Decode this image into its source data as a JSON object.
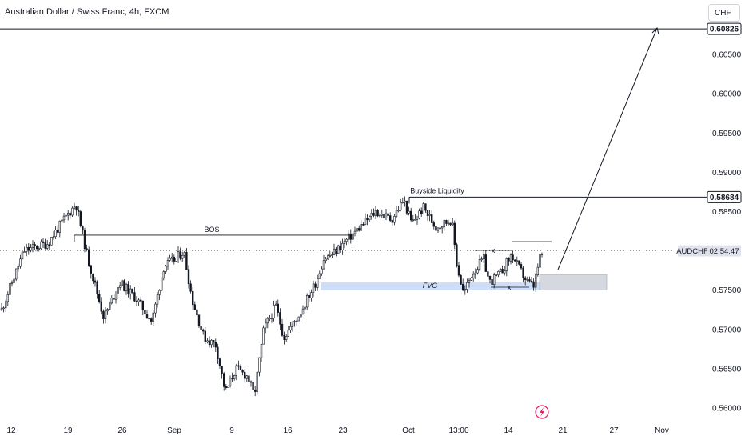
{
  "header": {
    "title": "Australian Dollar / Swiss Franc, 4h, FXCM",
    "currency_button": "CHF"
  },
  "chart_data": {
    "type": "candlestick",
    "title": "Australian Dollar / Swiss Franc, 4h, FXCM",
    "symbol": "AUDCHF",
    "countdown": "02:54:47",
    "ylim": [
      0.56,
      0.61
    ],
    "y_ticks": [
      "0.60500",
      "0.60000",
      "0.59500",
      "0.59000",
      "0.58500",
      "0.58000",
      "0.57500",
      "0.57000",
      "0.56500",
      "0.56000"
    ],
    "x_ticks": [
      "12",
      "19",
      "26",
      "Sep",
      "9",
      "16",
      "23",
      "Oct",
      "13:00",
      "14",
      "21",
      "27",
      "Nov"
    ],
    "price_path": [
      [
        0,
        0.572
      ],
      [
        30,
        0.58
      ],
      [
        60,
        0.581
      ],
      [
        80,
        0.584
      ],
      [
        95,
        0.586
      ],
      [
        110,
        0.579
      ],
      [
        130,
        0.5715
      ],
      [
        150,
        0.576
      ],
      [
        170,
        0.574
      ],
      [
        190,
        0.571
      ],
      [
        205,
        0.578
      ],
      [
        220,
        0.579
      ],
      [
        230,
        0.58
      ],
      [
        240,
        0.574
      ],
      [
        255,
        0.569
      ],
      [
        270,
        0.568
      ],
      [
        282,
        0.562
      ],
      [
        295,
        0.565
      ],
      [
        310,
        0.564
      ],
      [
        318,
        0.5615
      ],
      [
        330,
        0.57
      ],
      [
        345,
        0.573
      ],
      [
        355,
        0.569
      ],
      [
        375,
        0.572
      ],
      [
        395,
        0.576
      ],
      [
        405,
        0.579
      ],
      [
        415,
        0.5795
      ],
      [
        430,
        0.581
      ],
      [
        450,
        0.583
      ],
      [
        470,
        0.585
      ],
      [
        490,
        0.584
      ],
      [
        505,
        0.5865
      ],
      [
        515,
        0.5835
      ],
      [
        530,
        0.5855
      ],
      [
        545,
        0.583
      ],
      [
        565,
        0.584
      ],
      [
        572,
        0.578
      ],
      [
        580,
        0.5745
      ],
      [
        590,
        0.577
      ],
      [
        605,
        0.579
      ],
      [
        612,
        0.576
      ],
      [
        625,
        0.577
      ],
      [
        640,
        0.5795
      ],
      [
        648,
        0.578
      ],
      [
        660,
        0.576
      ],
      [
        668,
        0.5755
      ],
      [
        675,
        0.579
      ],
      [
        680,
        0.58
      ]
    ],
    "levels": [
      {
        "label": "0.60826",
        "value": 0.60826
      },
      {
        "label": "0.58684",
        "value": 0.58684
      }
    ],
    "current_price_value": 0.58,
    "annotations": {
      "bos": "BOS",
      "buyside": "Buyside Liquidity",
      "fvg": "FVG",
      "x_top": "x",
      "x_bottom": "x"
    },
    "fvg_zone": {
      "top": 0.576,
      "bottom": 0.575
    },
    "target_zone": {
      "top": 0.577,
      "bottom": 0.575
    },
    "bos_level": 0.582,
    "colors": {
      "candle": "#131722",
      "fvg": "#c5d7f7",
      "target_zone": "#d1d4dc",
      "line": "#131722",
      "symbol_tag": "#e0e3eb"
    }
  }
}
